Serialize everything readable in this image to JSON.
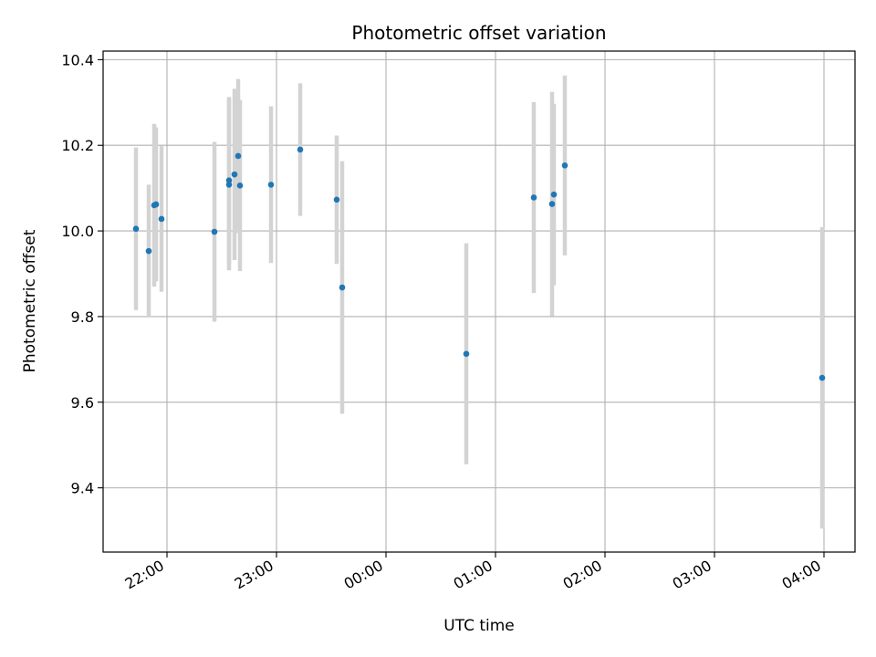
{
  "chart_data": {
    "type": "scatter",
    "title": "Photometric offset variation",
    "xlabel": "UTC time",
    "ylabel": "Photometric offset",
    "x_is_time": true,
    "xlim": [
      "21:25",
      "04:17"
    ],
    "ylim": [
      9.25,
      10.42
    ],
    "x_ticks": [
      "22:00",
      "23:00",
      "00:00",
      "01:00",
      "02:00",
      "03:00",
      "04:00"
    ],
    "y_ticks": [
      9.4,
      9.6,
      9.8,
      10.0,
      10.2,
      10.4
    ],
    "y_tick_labels": [
      "9.4",
      "9.6",
      "9.8",
      "10.0",
      "10.2",
      "10.4"
    ],
    "grid": true,
    "point_color": "#1f77b4",
    "errorbar_color": "#d3d3d3",
    "points": [
      {
        "t": "21:43",
        "y": 10.005,
        "err": 0.19
      },
      {
        "t": "21:50",
        "y": 9.953,
        "err": 0.155
      },
      {
        "t": "21:53",
        "y": 10.06,
        "err": 0.19
      },
      {
        "t": "21:54",
        "y": 10.062,
        "err": 0.18
      },
      {
        "t": "21:57",
        "y": 10.028,
        "err": 0.17
      },
      {
        "t": "22:26",
        "y": 9.998,
        "err": 0.21
      },
      {
        "t": "22:34",
        "y": 10.108,
        "err": 0.2
      },
      {
        "t": "22:34",
        "y": 10.118,
        "err": 0.195
      },
      {
        "t": "22:37",
        "y": 10.132,
        "err": 0.2
      },
      {
        "t": "22:39",
        "y": 10.175,
        "err": 0.18
      },
      {
        "t": "22:40",
        "y": 10.106,
        "err": 0.2
      },
      {
        "t": "22:57",
        "y": 10.108,
        "err": 0.183
      },
      {
        "t": "23:13",
        "y": 10.19,
        "err": 0.155
      },
      {
        "t": "23:33",
        "y": 10.073,
        "err": 0.15
      },
      {
        "t": "23:36",
        "y": 9.868,
        "err": 0.295
      },
      {
        "t": "00:44",
        "y": 9.713,
        "err": 0.258
      },
      {
        "t": "01:21",
        "y": 10.078,
        "err": 0.223
      },
      {
        "t": "01:31",
        "y": 10.063,
        "err": 0.262
      },
      {
        "t": "01:32",
        "y": 10.085,
        "err": 0.212
      },
      {
        "t": "01:38",
        "y": 10.153,
        "err": 0.21
      },
      {
        "t": "03:59",
        "y": 9.657,
        "err": 0.352
      }
    ]
  }
}
